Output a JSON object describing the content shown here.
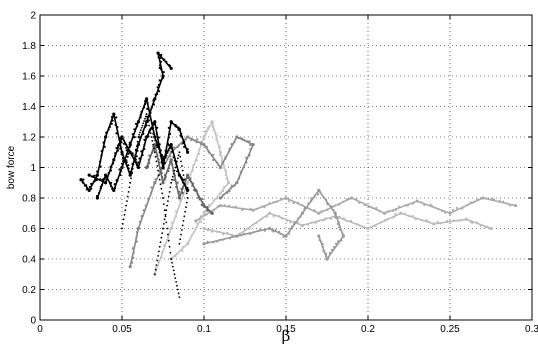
{
  "chart_data": {
    "type": "scatter",
    "title": "",
    "xlabel": "β",
    "ylabel": "bow force",
    "xlim": [
      0,
      0.3
    ],
    "ylim": [
      0,
      2
    ],
    "grid": true,
    "xticks": [
      "0",
      "0.05",
      "0.1",
      "0.15",
      "0.2",
      "0.25",
      "0.3"
    ],
    "yticks": [
      "0",
      "0.2",
      "0.4",
      "0.6",
      "0.8",
      "1",
      "1.2",
      "1.4",
      "1.6",
      "1.8",
      "2"
    ],
    "series": [
      {
        "color": "#aaaaaa",
        "style": "line",
        "values": [
          [
            0.095,
            0.65
          ],
          [
            0.11,
            0.75
          ],
          [
            0.13,
            0.72
          ],
          [
            0.15,
            0.8
          ],
          [
            0.17,
            0.7
          ],
          [
            0.19,
            0.8
          ],
          [
            0.21,
            0.7
          ],
          [
            0.23,
            0.78
          ],
          [
            0.25,
            0.7
          ],
          [
            0.27,
            0.8
          ],
          [
            0.29,
            0.75
          ]
        ]
      },
      {
        "color": "#bbbbbb",
        "style": "line",
        "values": [
          [
            0.1,
            0.6
          ],
          [
            0.12,
            0.55
          ],
          [
            0.14,
            0.7
          ],
          [
            0.16,
            0.62
          ],
          [
            0.18,
            0.68
          ],
          [
            0.2,
            0.6
          ],
          [
            0.22,
            0.7
          ],
          [
            0.24,
            0.63
          ],
          [
            0.26,
            0.66
          ],
          [
            0.275,
            0.6
          ]
        ]
      },
      {
        "color": "#999999",
        "style": "line",
        "values": [
          [
            0.1,
            0.5
          ],
          [
            0.12,
            0.55
          ],
          [
            0.14,
            0.6
          ],
          [
            0.15,
            0.55
          ],
          [
            0.16,
            0.7
          ],
          [
            0.17,
            0.85
          ],
          [
            0.18,
            0.7
          ],
          [
            0.185,
            0.55
          ],
          [
            0.175,
            0.4
          ],
          [
            0.17,
            0.55
          ]
        ]
      },
      {
        "color": "#c4c4c4",
        "style": "line",
        "values": [
          [
            0.07,
            0.3
          ],
          [
            0.08,
            0.6
          ],
          [
            0.09,
            0.9
          ],
          [
            0.1,
            1.2
          ],
          [
            0.105,
            1.3
          ],
          [
            0.11,
            1.1
          ],
          [
            0.115,
            0.9
          ],
          [
            0.1,
            0.7
          ],
          [
            0.09,
            0.5
          ],
          [
            0.08,
            0.4
          ]
        ]
      },
      {
        "color": "#888888",
        "style": "line",
        "values": [
          [
            0.055,
            0.35
          ],
          [
            0.06,
            0.6
          ],
          [
            0.07,
            0.9
          ],
          [
            0.08,
            1.1
          ],
          [
            0.09,
            1.2
          ],
          [
            0.1,
            1.15
          ],
          [
            0.11,
            1.0
          ],
          [
            0.12,
            1.2
          ],
          [
            0.13,
            1.15
          ],
          [
            0.12,
            0.9
          ],
          [
            0.11,
            0.8
          ]
        ]
      },
      {
        "color": "#666666",
        "style": "line",
        "values": [
          [
            0.065,
            1.0
          ],
          [
            0.07,
            1.15
          ],
          [
            0.075,
            0.9
          ],
          [
            0.08,
            1.05
          ],
          [
            0.085,
            0.8
          ],
          [
            0.09,
            0.95
          ],
          [
            0.095,
            0.85
          ],
          [
            0.1,
            0.75
          ],
          [
            0.105,
            0.7
          ]
        ]
      },
      {
        "color": "#000000",
        "style": "dots",
        "values": [
          [
            0.05,
            0.6
          ],
          [
            0.055,
            0.9
          ],
          [
            0.06,
            1.2
          ],
          [
            0.065,
            1.35
          ],
          [
            0.07,
            1.1
          ],
          [
            0.075,
            0.8
          ],
          [
            0.08,
            0.4
          ],
          [
            0.085,
            0.15
          ]
        ]
      },
      {
        "color": "#000000",
        "style": "dots",
        "values": [
          [
            0.07,
            0.3
          ],
          [
            0.075,
            0.6
          ],
          [
            0.08,
            0.9
          ],
          [
            0.085,
            1.1
          ],
          [
            0.09,
            0.8
          ],
          [
            0.085,
            0.5
          ]
        ]
      },
      {
        "color": "#000000",
        "style": "line",
        "values": [
          [
            0.025,
            0.92
          ],
          [
            0.03,
            0.85
          ],
          [
            0.035,
            0.95
          ],
          [
            0.04,
            1.2
          ],
          [
            0.045,
            1.35
          ],
          [
            0.05,
            1.1
          ],
          [
            0.055,
            0.95
          ],
          [
            0.06,
            1.15
          ],
          [
            0.065,
            1.3
          ],
          [
            0.07,
            1.45
          ],
          [
            0.075,
            1.6
          ],
          [
            0.072,
            1.75
          ],
          [
            0.08,
            1.65
          ]
        ]
      },
      {
        "color": "#000000",
        "style": "line",
        "values": [
          [
            0.03,
            0.95
          ],
          [
            0.04,
            0.9
          ],
          [
            0.045,
            1.05
          ],
          [
            0.05,
            1.2
          ],
          [
            0.055,
            1.1
          ],
          [
            0.06,
            1.0
          ],
          [
            0.065,
            1.2
          ],
          [
            0.07,
            1.3
          ],
          [
            0.075,
            1.0
          ],
          [
            0.08,
            1.3
          ],
          [
            0.085,
            1.25
          ],
          [
            0.09,
            1.1
          ]
        ]
      },
      {
        "color": "#000000",
        "style": "line",
        "values": [
          [
            0.035,
            0.8
          ],
          [
            0.04,
            0.95
          ],
          [
            0.045,
            0.85
          ],
          [
            0.05,
            1.0
          ],
          [
            0.055,
            1.15
          ],
          [
            0.06,
            1.3
          ],
          [
            0.065,
            1.45
          ],
          [
            0.07,
            1.2
          ],
          [
            0.075,
            1.05
          ],
          [
            0.08,
            1.15
          ],
          [
            0.085,
            0.95
          ],
          [
            0.09,
            0.85
          ]
        ]
      }
    ]
  }
}
